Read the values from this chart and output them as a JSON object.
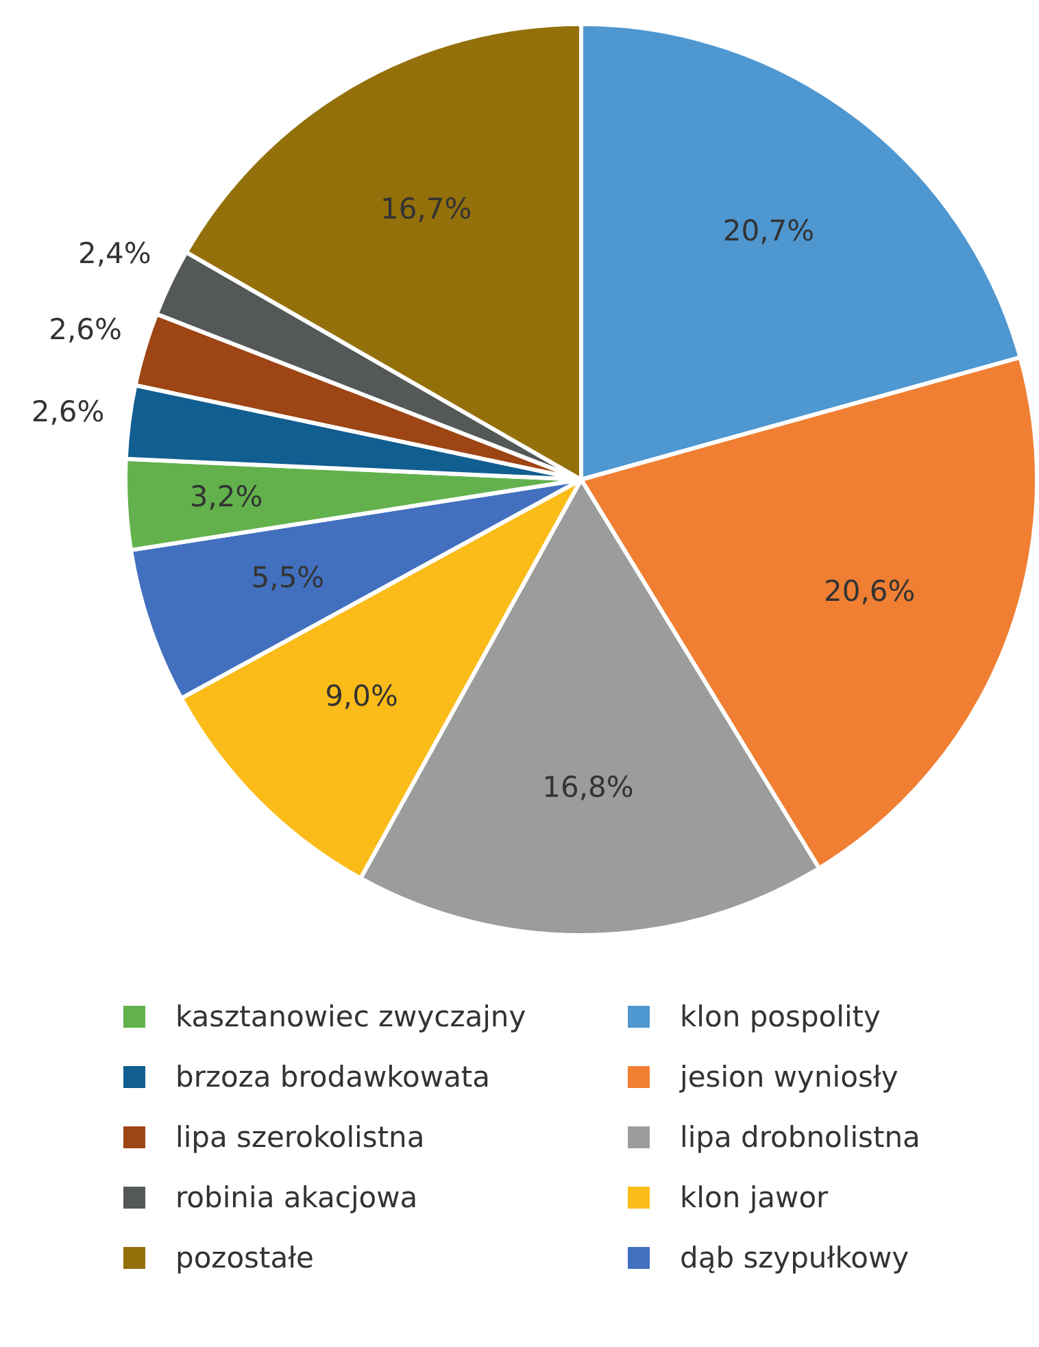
{
  "chart_data": {
    "type": "pie",
    "categories": [
      "klon pospolity",
      "jesion wyniosły",
      "lipa drobnolistna",
      "klon jawor",
      "dąb szypułkowy",
      "kasztanowiec zwyczajny",
      "brzoza brodawkowata",
      "lipa szerokolistna",
      "robinia akacjowa",
      "pozostałe"
    ],
    "values": [
      20.7,
      20.6,
      16.8,
      9.0,
      5.5,
      3.2,
      2.6,
      2.6,
      2.4,
      16.7
    ],
    "value_labels": [
      "20,7%",
      "20,6%",
      "16,8%",
      "9,0%",
      "5,5%",
      "3,2%",
      "2,6%",
      "2,6%",
      "2,4%",
      "16,7%"
    ],
    "colors": [
      "#4e97d1",
      "#f07f33",
      "#9b9d9c",
      "#fbbc19",
      "#4270bf",
      "#63b14d",
      "#115e91",
      "#9d4514",
      "#555859",
      "#94700b"
    ],
    "legend": "bottom"
  }
}
